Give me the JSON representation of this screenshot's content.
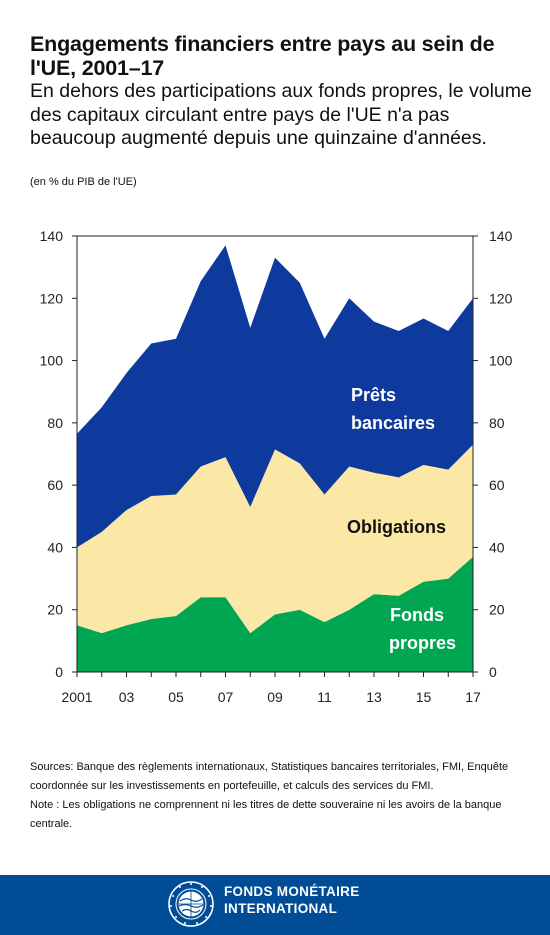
{
  "header": {
    "title": "Engagements financiers entre pays au sein de l'UE, 2001–17",
    "subtitle": "En dehors des participations aux fonds propres, le volume des capitaux circulant entre pays de l'UE n'a pas beaucoup augmenté depuis une quinzaine d'années.",
    "units": "(en % du PIB de l'UE)"
  },
  "chart_data": {
    "type": "area",
    "stacked": true,
    "x": [
      2001,
      2002,
      2003,
      2004,
      2005,
      2006,
      2007,
      2008,
      2009,
      2010,
      2011,
      2012,
      2013,
      2014,
      2015,
      2016,
      2017
    ],
    "x_tick_labels": [
      "2001",
      "03",
      "05",
      "07",
      "09",
      "11",
      "13",
      "15",
      "17"
    ],
    "x_tick_values": [
      2001,
      2003,
      2005,
      2007,
      2009,
      2011,
      2013,
      2015,
      2017
    ],
    "ylim": [
      0,
      140
    ],
    "y_ticks": [
      0,
      20,
      40,
      60,
      80,
      100,
      120,
      140
    ],
    "y_axis_right": true,
    "grid": false,
    "series": [
      {
        "name": "Fonds propres",
        "color": "#00a651",
        "label_color": "#ffffff",
        "values": [
          15,
          12.5,
          15,
          17,
          18,
          24,
          24,
          12.5,
          18.5,
          20,
          16,
          20,
          25,
          24.5,
          29,
          30,
          37
        ]
      },
      {
        "name": "Obligations",
        "color": "#fbe8a6",
        "label_color": "#111111",
        "values": [
          25,
          32.5,
          37,
          39.5,
          39,
          42,
          45,
          40.5,
          53,
          47,
          41,
          46,
          39,
          38,
          37.5,
          35,
          36
        ]
      },
      {
        "name": "Prêts bancaires",
        "color": "#0d3a9c",
        "label_color": "#ffffff",
        "values": [
          36.5,
          40,
          44,
          49,
          50,
          59.5,
          68,
          57.5,
          61.5,
          58,
          50,
          54,
          48.5,
          47,
          47,
          44.5,
          47
        ]
      }
    ],
    "series_labels": {
      "equity_line1": "Fonds",
      "equity_line2": "propres",
      "bonds": "Obligations",
      "loans_line1": "Prêts",
      "loans_line2": "bancaires"
    }
  },
  "notes": {
    "sources": "Sources: Banque des règlements internationaux, Statistiques bancaires territoriales, FMI, Enquête coordonnée sur les investissements en portefeuille, et calculs des services du FMI.",
    "note": "Note : Les obligations ne comprennent ni les titres de dette souveraine ni les avoirs de la banque centrale."
  },
  "footer": {
    "org_line1": "FONDS MONÉTAIRE",
    "org_line2": "INTERNATIONAL",
    "bg_color": "#004c97",
    "logo_icon": "imf-seal-icon"
  }
}
